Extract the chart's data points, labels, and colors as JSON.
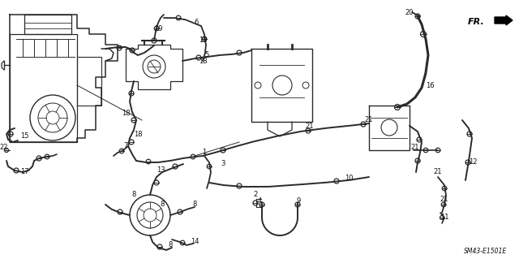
{
  "background_color": "#ffffff",
  "diagram_label": "SM43-E1501E",
  "fr_label": "FR.",
  "line_color": "#2a2a2a",
  "text_color": "#111111",
  "figsize": [
    6.4,
    3.19
  ],
  "dpi": 100
}
